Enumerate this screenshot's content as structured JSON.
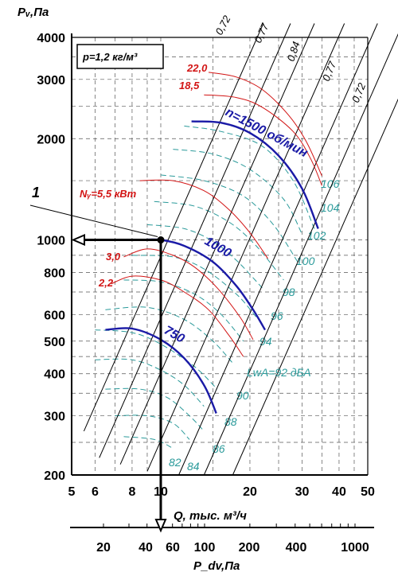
{
  "chart_data": {
    "type": "line",
    "y_label": "Pᵥ,Па",
    "x_label": "Q, тыс. м³/ч",
    "x2_label": "P_dv,Па",
    "density_label": "p=1,2 кг/м³",
    "marker_label": "1",
    "x_ticks": [
      "5",
      "6",
      "8",
      "10",
      "20",
      "30",
      "40",
      "50"
    ],
    "y_ticks": [
      "200",
      "300",
      "400",
      "500",
      "600",
      "800",
      "1000",
      "2000",
      "3000",
      "4000"
    ],
    "x2_ticks": [
      "20",
      "40",
      "60",
      "100",
      "200",
      "400",
      "1000"
    ],
    "sound_level_label": "LwA=92 дБА",
    "colors": {
      "rpm": "#1a1aa6",
      "power": "#d21414",
      "sound": "#2a9a9a",
      "grid": "#555555"
    },
    "speed_curves": [
      {
        "label": "n=1500 об/мин",
        "points": [
          [
            12.7,
            2250
          ],
          [
            16,
            2230
          ],
          [
            20,
            2080
          ],
          [
            25,
            1780
          ],
          [
            30,
            1420
          ],
          [
            34,
            1080
          ]
        ]
      },
      {
        "label": "1000",
        "points": [
          [
            8.5,
            1000
          ],
          [
            10,
            1000
          ],
          [
            12,
            960
          ],
          [
            15,
            860
          ],
          [
            18,
            730
          ],
          [
            20.5,
            620
          ],
          [
            22.5,
            540
          ]
        ]
      },
      {
        "label": "750",
        "points": [
          [
            6.5,
            540
          ],
          [
            8,
            545
          ],
          [
            10,
            505
          ],
          [
            12,
            445
          ],
          [
            14,
            370
          ],
          [
            15.4,
            305
          ]
        ]
      }
    ],
    "power_curves": [
      {
        "label": "22,0",
        "points": [
          [
            14.5,
            3150
          ],
          [
            18,
            3050
          ],
          [
            22,
            2800
          ],
          [
            27,
            2350
          ],
          [
            31,
            1960
          ],
          [
            35,
            1550
          ]
        ]
      },
      {
        "label": "18,5",
        "points": [
          [
            14,
            2700
          ],
          [
            18,
            2650
          ],
          [
            22,
            2480
          ],
          [
            28,
            2100
          ],
          [
            32,
            1750
          ],
          [
            35,
            1450
          ]
        ]
      },
      {
        "label": "Nᵧ=5,5 кВт",
        "points": [
          [
            8.5,
            1500
          ],
          [
            11,
            1500
          ],
          [
            14,
            1400
          ],
          [
            17,
            1230
          ],
          [
            20,
            1050
          ],
          [
            23,
            880
          ]
        ]
      },
      {
        "label": "3,0",
        "points": [
          [
            7.5,
            890
          ],
          [
            9,
            940
          ],
          [
            11,
            900
          ],
          [
            13,
            830
          ],
          [
            15.5,
            720
          ],
          [
            18.5,
            590
          ],
          [
            20.5,
            505
          ]
        ]
      },
      {
        "label": "2,2",
        "points": [
          [
            6.8,
            740
          ],
          [
            8,
            780
          ],
          [
            10,
            760
          ],
          [
            12,
            700
          ],
          [
            14.5,
            620
          ],
          [
            17,
            520
          ],
          [
            19,
            450
          ]
        ]
      }
    ],
    "efficiency_labels": [
      "0,72",
      "0,77",
      "0,84",
      "0,77",
      "0,72"
    ],
    "sound_levels": [
      "106",
      "104",
      "102",
      "100",
      "98",
      "96",
      "94",
      "92",
      "90",
      "88",
      "86",
      "84",
      "82"
    ],
    "operating_point": {
      "q": 10,
      "pv": 1000
    }
  }
}
